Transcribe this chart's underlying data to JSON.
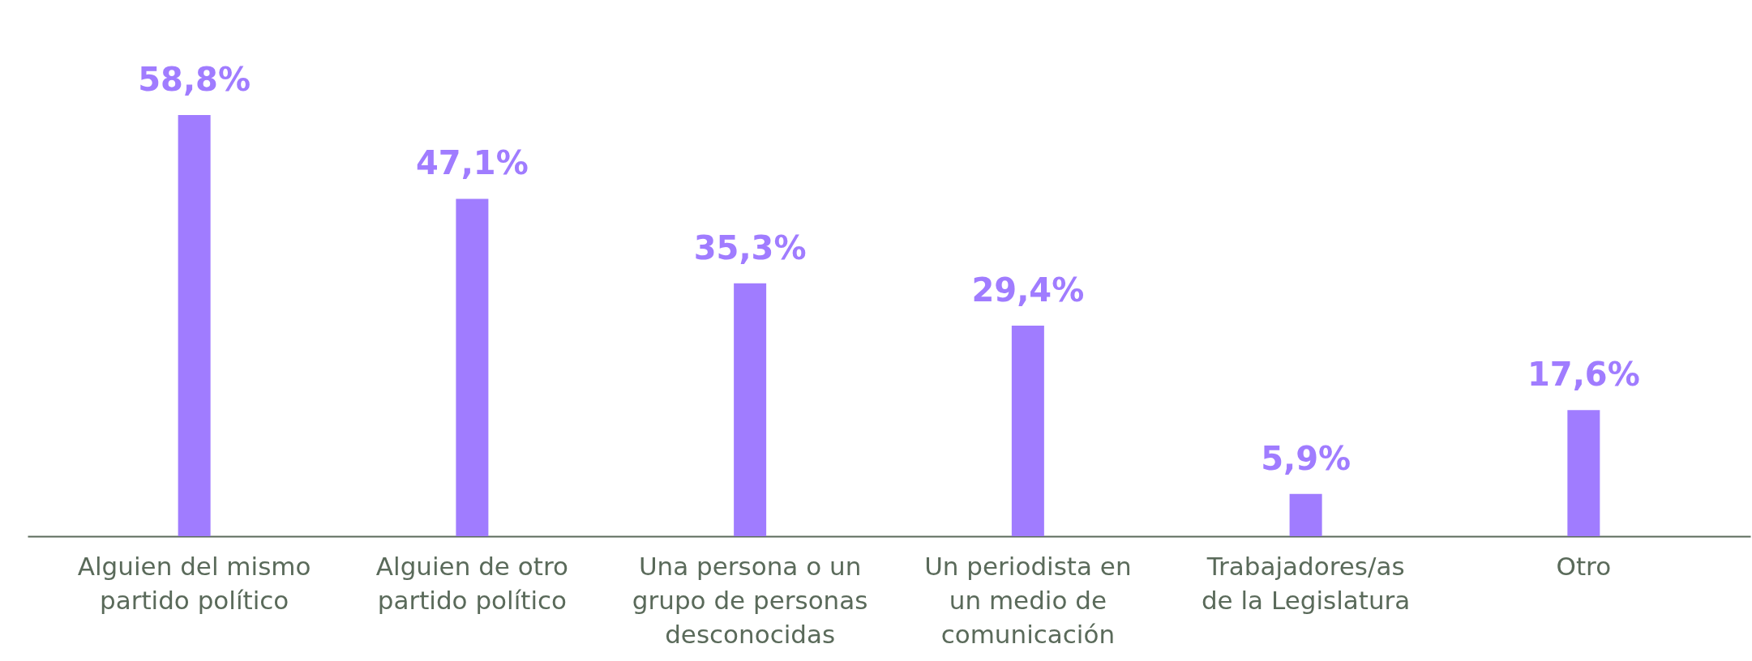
{
  "chart_data": {
    "type": "bar",
    "categories": [
      "Alguien del mismo partido político",
      "Alguien de otro partido político",
      "Una persona o un grupo de personas desconocidas",
      "Un periodista en un medio de comunicación",
      "Trabajadores/as de la Legislatura",
      "Otro"
    ],
    "values": [
      58.8,
      47.1,
      35.3,
      29.4,
      5.9,
      17.6
    ],
    "value_labels": [
      "58,8%",
      "47,1%",
      "35,3%",
      "29,4%",
      "5,9%",
      "17,6%"
    ],
    "color": "#a07cff",
    "grid": false
  }
}
